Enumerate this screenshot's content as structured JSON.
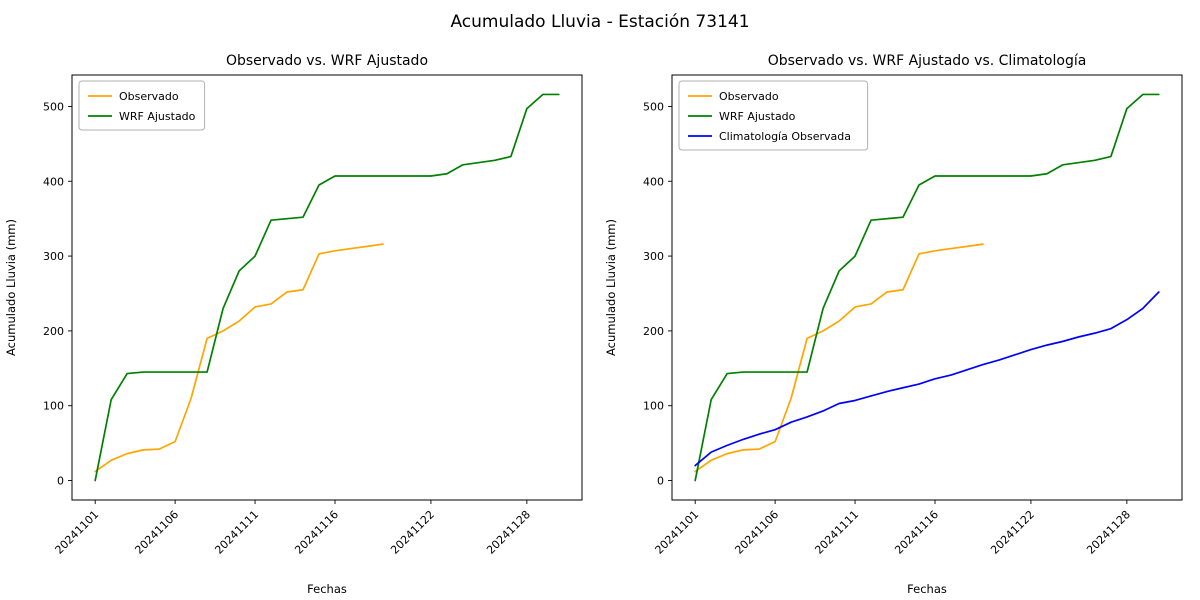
{
  "title": "Acumulado Lluvia - Estación 73141",
  "colors": {
    "observado": "#ffa500",
    "wrf_ajustado": "#008000",
    "climatologia": "#0000ff",
    "axes": "#000000",
    "legend_border": "#b0b0b0",
    "background": "#ffffff"
  },
  "chart_data": [
    {
      "type": "line",
      "title": "Observado vs. WRF Ajustado",
      "xlabel": "Fechas",
      "ylabel": "Acumulado Lluvia (mm)",
      "ylim": [
        -26,
        542
      ],
      "xrange": [
        -1.45,
        30.45
      ],
      "yticks": [
        0,
        100,
        200,
        300,
        400,
        500
      ],
      "xticks": [
        "20241101",
        "20241106",
        "20241111",
        "20241116",
        "20241122",
        "20241128"
      ],
      "xtick_positions": [
        0,
        5,
        10,
        15,
        21,
        27
      ],
      "grid": false,
      "legend_position": "upper left",
      "series": [
        {
          "name": "Observado",
          "color": "#ffa500",
          "values": [
            12,
            27,
            36,
            41,
            42,
            52,
            110,
            190,
            200,
            213,
            232,
            236,
            252,
            255,
            303,
            307,
            310,
            313,
            316
          ]
        },
        {
          "name": "WRF Ajustado",
          "color": "#008000",
          "values": [
            0,
            108,
            143,
            145,
            145,
            145,
            145,
            145,
            230,
            280,
            300,
            348,
            350,
            352,
            395,
            407,
            407,
            407,
            407,
            407,
            407,
            407,
            410,
            422,
            425,
            428,
            433,
            497,
            516,
            516
          ]
        }
      ]
    },
    {
      "type": "line",
      "title": "Observado vs. WRF Ajustado vs. Climatología",
      "xlabel": "Fechas",
      "ylabel": "Acumulado Lluvia (mm)",
      "ylim": [
        -26,
        542
      ],
      "xrange": [
        -1.45,
        30.45
      ],
      "yticks": [
        0,
        100,
        200,
        300,
        400,
        500
      ],
      "xticks": [
        "20241101",
        "20241106",
        "20241111",
        "20241116",
        "20241122",
        "20241128"
      ],
      "xtick_positions": [
        0,
        5,
        10,
        15,
        21,
        27
      ],
      "grid": false,
      "legend_position": "upper left",
      "series": [
        {
          "name": "Observado",
          "color": "#ffa500",
          "values": [
            12,
            27,
            36,
            41,
            42,
            52,
            110,
            190,
            200,
            213,
            232,
            236,
            252,
            255,
            303,
            307,
            310,
            313,
            316
          ]
        },
        {
          "name": "WRF Ajustado",
          "color": "#008000",
          "values": [
            0,
            108,
            143,
            145,
            145,
            145,
            145,
            145,
            230,
            280,
            300,
            348,
            350,
            352,
            395,
            407,
            407,
            407,
            407,
            407,
            407,
            407,
            410,
            422,
            425,
            428,
            433,
            497,
            516,
            516
          ]
        },
        {
          "name": "Climatología Observada",
          "color": "#0000ff",
          "values": [
            20,
            38,
            47,
            55,
            62,
            68,
            78,
            85,
            93,
            103,
            107,
            113,
            119,
            124,
            129,
            136,
            141,
            148,
            155,
            161,
            168,
            175,
            181,
            186,
            192,
            197,
            203,
            215,
            230,
            252
          ]
        }
      ]
    }
  ]
}
